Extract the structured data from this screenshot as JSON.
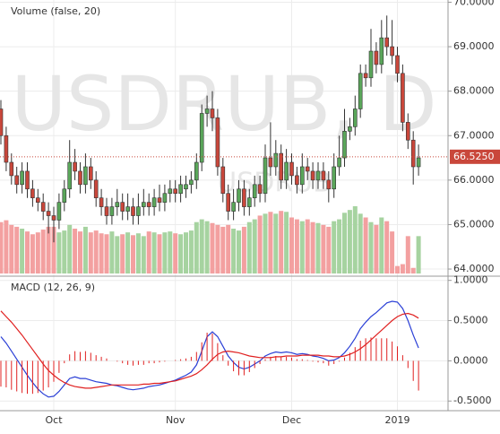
{
  "chart_data": [
    {
      "type": "candlestick",
      "title": "Volume (false, 20)",
      "watermark": "USDRUB, D",
      "watermark_symbol": "USDRUB",
      "categories": [
        null,
        null,
        null,
        null,
        null,
        null,
        null,
        null,
        null,
        null,
        "Oct",
        null,
        null,
        null,
        null,
        null,
        null,
        null,
        null,
        null,
        null,
        null,
        null,
        null,
        null,
        null,
        null,
        null,
        null,
        null,
        null,
        null,
        null,
        "Nov",
        null,
        null,
        null,
        null,
        null,
        null,
        null,
        null,
        null,
        null,
        null,
        null,
        null,
        null,
        null,
        null,
        null,
        null,
        null,
        null,
        null,
        "Dec",
        null,
        null,
        null,
        null,
        null,
        null,
        null,
        null,
        null,
        null,
        null,
        null,
        null,
        null,
        null,
        null,
        null,
        null,
        null,
        "2019",
        null,
        null,
        null,
        null
      ],
      "open": [
        67.6,
        67.0,
        66.4,
        66.1,
        65.9,
        66.2,
        65.8,
        65.6,
        65.5,
        65.3,
        65.2,
        65.1,
        65.5,
        65.8,
        66.4,
        66.2,
        65.9,
        66.3,
        66.0,
        65.6,
        65.4,
        65.2,
        65.4,
        65.5,
        65.3,
        65.4,
        65.2,
        65.4,
        65.5,
        65.4,
        65.6,
        65.5,
        65.7,
        65.8,
        65.7,
        65.8,
        65.9,
        66.0,
        66.4,
        67.5,
        67.6,
        67.4,
        66.3,
        65.7,
        65.3,
        65.5,
        65.8,
        65.4,
        65.6,
        65.9,
        65.7,
        66.5,
        66.3,
        66.6,
        66.0,
        66.4,
        66.1,
        65.9,
        66.3,
        66.2,
        66.0,
        66.2,
        66.0,
        65.8,
        66.3,
        66.5,
        67.1,
        67.2,
        67.6,
        68.4,
        68.3,
        68.9,
        68.6,
        69.2,
        69.0,
        68.8,
        68.4,
        67.3,
        66.9,
        66.3
      ],
      "high": [
        67.8,
        67.2,
        66.6,
        66.3,
        66.4,
        66.4,
        66.0,
        65.8,
        65.7,
        65.5,
        65.4,
        65.7,
        66.0,
        66.9,
        66.7,
        66.4,
        66.6,
        66.5,
        66.2,
        65.8,
        65.6,
        65.6,
        65.8,
        65.7,
        65.7,
        65.6,
        65.7,
        65.8,
        65.7,
        65.8,
        65.9,
        65.9,
        66.0,
        66.0,
        66.1,
        66.1,
        66.2,
        66.6,
        67.7,
        67.9,
        68.0,
        67.6,
        66.5,
        65.9,
        65.8,
        66.0,
        66.0,
        65.8,
        66.1,
        66.1,
        66.8,
        67.3,
        66.9,
        66.8,
        66.7,
        66.6,
        66.3,
        66.6,
        66.5,
        66.4,
        66.4,
        66.4,
        66.2,
        66.6,
        67.0,
        67.6,
        67.4,
        67.9,
        68.6,
        68.6,
        69.4,
        69.1,
        69.6,
        69.7,
        69.6,
        69.0,
        68.6,
        67.5,
        67.1,
        66.8
      ],
      "low": [
        66.8,
        66.2,
        65.9,
        65.7,
        65.7,
        65.6,
        65.4,
        65.3,
        65.1,
        64.8,
        64.6,
        64.9,
        65.3,
        65.6,
        66.0,
        65.7,
        65.7,
        65.8,
        65.4,
        65.2,
        65.0,
        65.0,
        65.2,
        65.1,
        65.1,
        65.0,
        65.0,
        65.2,
        65.2,
        65.2,
        65.3,
        65.3,
        65.5,
        65.5,
        65.5,
        65.6,
        65.7,
        65.8,
        66.2,
        67.2,
        67.1,
        66.1,
        65.5,
        65.1,
        65.1,
        65.3,
        65.2,
        65.2,
        65.4,
        65.5,
        65.5,
        66.1,
        66.1,
        65.8,
        65.8,
        65.9,
        65.7,
        65.7,
        66.0,
        65.8,
        65.8,
        65.8,
        65.5,
        65.6,
        66.1,
        66.3,
        66.9,
        67.0,
        67.4,
        68.1,
        68.1,
        68.4,
        68.4,
        68.8,
        68.6,
        68.2,
        67.1,
        66.7,
        65.9,
        66.1
      ],
      "close": [
        67.0,
        66.4,
        66.1,
        65.9,
        66.2,
        65.8,
        65.6,
        65.5,
        65.3,
        65.2,
        65.1,
        65.5,
        65.8,
        66.4,
        66.2,
        65.9,
        66.3,
        66.0,
        65.6,
        65.4,
        65.2,
        65.4,
        65.5,
        65.3,
        65.4,
        65.2,
        65.4,
        65.5,
        65.4,
        65.6,
        65.5,
        65.7,
        65.8,
        65.7,
        65.9,
        65.9,
        66.0,
        66.4,
        67.5,
        67.6,
        67.4,
        66.3,
        65.7,
        65.3,
        65.5,
        65.8,
        65.4,
        65.6,
        65.9,
        65.7,
        66.5,
        66.3,
        66.6,
        66.0,
        66.4,
        66.1,
        65.9,
        66.3,
        66.2,
        66.0,
        66.2,
        66.0,
        65.8,
        66.3,
        66.5,
        67.1,
        67.2,
        67.6,
        68.4,
        68.3,
        68.9,
        68.6,
        69.2,
        69.0,
        68.8,
        68.4,
        67.3,
        66.9,
        66.3,
        66.5
      ],
      "volume": [
        55,
        57,
        52,
        50,
        48,
        45,
        42,
        44,
        47,
        50,
        50,
        44,
        46,
        52,
        48,
        45,
        50,
        44,
        46,
        43,
        42,
        45,
        40,
        42,
        44,
        41,
        43,
        40,
        45,
        44,
        42,
        44,
        45,
        43,
        42,
        44,
        46,
        55,
        58,
        56,
        54,
        52,
        50,
        52,
        48,
        46,
        50,
        55,
        58,
        62,
        64,
        66,
        64,
        67,
        66,
        60,
        58,
        56,
        58,
        55,
        54,
        52,
        50,
        56,
        58,
        65,
        68,
        72,
        64,
        60,
        55,
        52,
        60,
        56,
        45,
        8,
        10,
        40,
        6,
        40
      ],
      "up_color": "#5aa65a",
      "down_color": "#c9473b",
      "up_volume_color": "#a6d3a0",
      "down_volume_color": "#f3a0a0",
      "ylim": [
        63.9,
        70.05
      ],
      "yticks": [
        {
          "value": 64,
          "label": "64.0000"
        },
        {
          "value": 65,
          "label": "65.0000"
        },
        {
          "value": 66,
          "label": "66.0000"
        },
        {
          "value": 67,
          "label": "67.0000"
        },
        {
          "value": 68,
          "label": "68.0000"
        },
        {
          "value": 69,
          "label": "69.0000"
        },
        {
          "value": 70,
          "label": "70.0000"
        }
      ],
      "last_price": {
        "value": 66.525,
        "label": "66.5250"
      },
      "last_price_color": "#c9473b",
      "grid": true
    },
    {
      "type": "macd",
      "title": "MACD (12, 26, 9)",
      "series": [
        {
          "color": "#2a3fd6",
          "values": [
            0.3,
            0.22,
            0.12,
            0.02,
            -0.08,
            -0.18,
            -0.27,
            -0.35,
            -0.41,
            -0.45,
            -0.44,
            -0.38,
            -0.3,
            -0.22,
            -0.2,
            -0.22,
            -0.22,
            -0.24,
            -0.26,
            -0.27,
            -0.28,
            -0.3,
            -0.31,
            -0.33,
            -0.35,
            -0.36,
            -0.35,
            -0.34,
            -0.32,
            -0.31,
            -0.3,
            -0.28,
            -0.26,
            -0.24,
            -0.21,
            -0.18,
            -0.14,
            -0.05,
            0.12,
            0.3,
            0.36,
            0.3,
            0.18,
            0.06,
            -0.02,
            -0.08,
            -0.1,
            -0.08,
            -0.04,
            0.0,
            0.06,
            0.09,
            0.11,
            0.1,
            0.11,
            0.1,
            0.08,
            0.09,
            0.08,
            0.06,
            0.05,
            0.03,
            0.0,
            0.01,
            0.04,
            0.1,
            0.18,
            0.28,
            0.4,
            0.48,
            0.55,
            0.6,
            0.66,
            0.72,
            0.74,
            0.73,
            0.65,
            0.5,
            0.32,
            0.16
          ]
        },
        {
          "color": "#e02020",
          "values": [
            0.62,
            0.55,
            0.48,
            0.4,
            0.32,
            0.23,
            0.14,
            0.05,
            -0.04,
            -0.12,
            -0.18,
            -0.23,
            -0.27,
            -0.3,
            -0.32,
            -0.33,
            -0.34,
            -0.34,
            -0.33,
            -0.32,
            -0.31,
            -0.3,
            -0.3,
            -0.3,
            -0.3,
            -0.3,
            -0.3,
            -0.29,
            -0.29,
            -0.28,
            -0.28,
            -0.27,
            -0.26,
            -0.25,
            -0.23,
            -0.21,
            -0.19,
            -0.16,
            -0.11,
            -0.05,
            0.02,
            0.08,
            0.11,
            0.12,
            0.11,
            0.1,
            0.08,
            0.06,
            0.05,
            0.04,
            0.04,
            0.04,
            0.05,
            0.05,
            0.06,
            0.06,
            0.06,
            0.07,
            0.07,
            0.07,
            0.07,
            0.06,
            0.06,
            0.05,
            0.05,
            0.06,
            0.08,
            0.11,
            0.15,
            0.2,
            0.26,
            0.32,
            0.38,
            0.44,
            0.5,
            0.55,
            0.58,
            0.59,
            0.57,
            0.53
          ]
        },
        {
          "type": "histogram",
          "color": "#e02020",
          "values": [
            -0.32,
            -0.33,
            -0.36,
            -0.38,
            -0.4,
            -0.41,
            -0.41,
            -0.4,
            -0.37,
            -0.33,
            -0.26,
            -0.15,
            -0.03,
            0.08,
            0.12,
            0.11,
            0.12,
            0.1,
            0.07,
            0.05,
            0.03,
            0.0,
            -0.01,
            -0.03,
            -0.05,
            -0.06,
            -0.05,
            -0.05,
            -0.03,
            -0.03,
            -0.02,
            -0.01,
            0.0,
            0.01,
            0.02,
            0.03,
            0.05,
            0.11,
            0.23,
            0.35,
            0.34,
            0.22,
            0.07,
            -0.06,
            -0.13,
            -0.18,
            -0.18,
            -0.14,
            -0.09,
            -0.04,
            0.02,
            0.05,
            0.06,
            0.05,
            0.05,
            0.04,
            0.02,
            0.02,
            0.01,
            -0.01,
            -0.02,
            -0.03,
            -0.06,
            -0.04,
            -0.01,
            0.04,
            0.1,
            0.17,
            0.25,
            0.28,
            0.29,
            0.28,
            0.28,
            0.28,
            0.24,
            0.18,
            0.07,
            -0.09,
            -0.25,
            -0.37
          ]
        }
      ],
      "ylim": [
        -0.62,
        1.03
      ],
      "yticks": [
        {
          "value": -0.5,
          "label": "-0.5000"
        },
        {
          "value": 0,
          "label": "0.0000"
        },
        {
          "value": 0.5,
          "label": "0.5000"
        },
        {
          "value": 1,
          "label": "1.0000"
        }
      ],
      "grid": true
    }
  ]
}
